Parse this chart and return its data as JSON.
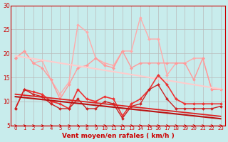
{
  "title": "",
  "xlabel": "Vent moyen/en rafales ( km/h )",
  "background_color": "#c8ecec",
  "grid_color": "#bbbbbb",
  "x": [
    0,
    1,
    2,
    3,
    4,
    5,
    6,
    7,
    8,
    9,
    10,
    11,
    12,
    13,
    14,
    15,
    16,
    17,
    18,
    19,
    20,
    21,
    22,
    23
  ],
  "series": [
    {
      "name": "max_light",
      "color": "#ffaaaa",
      "lw": 1.0,
      "marker": "D",
      "markersize": 2.0,
      "values": [
        19.0,
        20.5,
        18.0,
        18.5,
        14.5,
        11.5,
        14.0,
        26.0,
        24.5,
        19.0,
        18.0,
        17.5,
        20.5,
        20.5,
        27.5,
        23.0,
        23.0,
        15.5,
        18.0,
        18.0,
        19.0,
        19.0,
        12.5,
        12.5
      ]
    },
    {
      "name": "avg_light",
      "color": "#ff9999",
      "lw": 1.0,
      "marker": "D",
      "markersize": 2.0,
      "values": [
        19.0,
        20.5,
        18.0,
        17.0,
        14.5,
        10.5,
        13.5,
        17.0,
        17.5,
        19.0,
        17.5,
        17.0,
        20.5,
        17.0,
        18.0,
        18.0,
        18.0,
        18.0,
        18.0,
        18.0,
        14.5,
        19.0,
        12.5,
        12.5
      ]
    },
    {
      "name": "trend_avg",
      "color": "#ffcccc",
      "lw": 1.5,
      "marker": null,
      "markersize": 0,
      "values": [
        19.5,
        19.2,
        18.9,
        18.6,
        18.3,
        18.0,
        17.7,
        17.4,
        17.1,
        16.8,
        16.5,
        16.2,
        15.9,
        15.6,
        15.3,
        15.0,
        14.7,
        14.4,
        14.1,
        13.8,
        13.5,
        13.2,
        12.9,
        12.6
      ]
    },
    {
      "name": "avg_dark",
      "color": "#ee3333",
      "lw": 1.2,
      "marker": "D",
      "markersize": 2.0,
      "values": [
        8.5,
        12.5,
        12.0,
        11.5,
        10.0,
        9.5,
        8.5,
        12.5,
        10.5,
        10.0,
        11.0,
        10.5,
        7.0,
        9.5,
        10.5,
        12.5,
        15.5,
        13.5,
        10.5,
        9.5,
        9.5,
        9.5,
        9.5,
        9.5
      ]
    },
    {
      "name": "min_dark",
      "color": "#cc2222",
      "lw": 1.0,
      "marker": "D",
      "markersize": 2.0,
      "values": [
        8.5,
        12.5,
        11.5,
        11.0,
        9.5,
        8.5,
        8.5,
        10.5,
        8.5,
        8.5,
        10.0,
        9.5,
        6.5,
        9.0,
        9.5,
        12.5,
        13.5,
        10.5,
        8.5,
        8.5,
        8.5,
        8.5,
        8.5,
        9.0
      ]
    },
    {
      "name": "trend_dark1",
      "color": "#dd2222",
      "lw": 1.3,
      "marker": null,
      "markersize": 0,
      "values": [
        11.5,
        11.3,
        11.1,
        10.9,
        10.7,
        10.5,
        10.3,
        10.1,
        9.9,
        9.7,
        9.5,
        9.3,
        9.1,
        8.9,
        8.7,
        8.5,
        8.3,
        8.1,
        7.9,
        7.7,
        7.5,
        7.3,
        7.1,
        6.9
      ]
    },
    {
      "name": "trend_dark2",
      "color": "#bb1111",
      "lw": 1.5,
      "marker": null,
      "markersize": 0,
      "values": [
        11.0,
        10.8,
        10.6,
        10.4,
        10.2,
        10.0,
        9.8,
        9.6,
        9.4,
        9.2,
        9.0,
        8.8,
        8.6,
        8.4,
        8.2,
        8.0,
        7.8,
        7.6,
        7.4,
        7.2,
        7.0,
        6.8,
        6.6,
        6.4
      ]
    }
  ],
  "ylim": [
    5,
    30
  ],
  "yticks": [
    5,
    10,
    15,
    20,
    25,
    30
  ],
  "text_color": "#cc0000",
  "arrow_angles": [
    0,
    0,
    0,
    0,
    0,
    0,
    0,
    0,
    0,
    0,
    0,
    0,
    0,
    0,
    30,
    30,
    30,
    0,
    0,
    0,
    0,
    0,
    0,
    0
  ]
}
